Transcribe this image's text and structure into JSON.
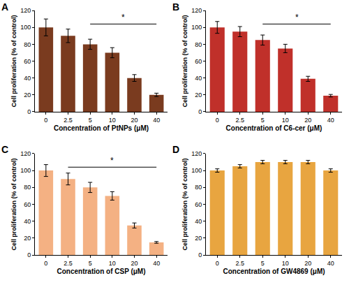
{
  "chart_data": [
    {
      "type": "bar",
      "title": "A",
      "x_label": "Concentration of PtNPs (μM)",
      "y_label": "Cell proliferation (% of control)",
      "categories": [
        "0",
        "2.5",
        "5",
        "10",
        "20",
        "40"
      ],
      "values": [
        100,
        90,
        80,
        70,
        40,
        20
      ],
      "errors": [
        10,
        8,
        6,
        6,
        4,
        2
      ],
      "color": "#7a3b1f",
      "ylim": [
        0,
        120
      ],
      "yticks": [
        0,
        20,
        40,
        60,
        80,
        100,
        120
      ],
      "grid": false,
      "annotations": [
        {
          "text": "*",
          "x_from": "5",
          "x_to": "40",
          "y": 104
        }
      ]
    },
    {
      "type": "bar",
      "title": "B",
      "x_label": "Concentration of C6-cer (μM)",
      "y_label": "Cell proliferation (% of control)",
      "categories": [
        "0",
        "2.5",
        "5",
        "10",
        "20",
        "40"
      ],
      "values": [
        100,
        95,
        85,
        75,
        39,
        19
      ],
      "errors": [
        7,
        6,
        6,
        5,
        3,
        1.5
      ],
      "color": "#c0302a",
      "ylim": [
        0,
        120
      ],
      "yticks": [
        0,
        20,
        40,
        60,
        80,
        100,
        120
      ],
      "grid": false,
      "annotations": [
        {
          "text": "*",
          "x_from": "5",
          "x_to": "40",
          "y": 104
        }
      ]
    },
    {
      "type": "bar",
      "title": "C",
      "x_label": "Concentration of CSP (μM)",
      "y_label": "Cell proliferation (% of control)",
      "categories": [
        "0",
        "2.5",
        "5",
        "10",
        "20",
        "40"
      ],
      "values": [
        100,
        90,
        80,
        70,
        35,
        15
      ],
      "errors": [
        7,
        7,
        6,
        5,
        3,
        1
      ],
      "color": "#f4b183",
      "ylim": [
        0,
        120
      ],
      "yticks": [
        0,
        20,
        40,
        60,
        80,
        100,
        120
      ],
      "grid": false,
      "annotations": [
        {
          "text": "*",
          "x_from": "2.5",
          "x_to": "40",
          "y": 104
        }
      ]
    },
    {
      "type": "bar",
      "title": "D",
      "x_label": "Concentration of GW4869 (μM)",
      "y_label": "Cell proliferation (% of control)",
      "categories": [
        "0",
        "2.5",
        "5",
        "10",
        "20",
        "40"
      ],
      "values": [
        100,
        105,
        110,
        110,
        110,
        100
      ],
      "errors": [
        2,
        2,
        2,
        2,
        2,
        2
      ],
      "color": "#e8a540",
      "ylim": [
        0,
        120
      ],
      "yticks": [
        0,
        20,
        40,
        60,
        80,
        100,
        120
      ],
      "grid": false
    }
  ]
}
